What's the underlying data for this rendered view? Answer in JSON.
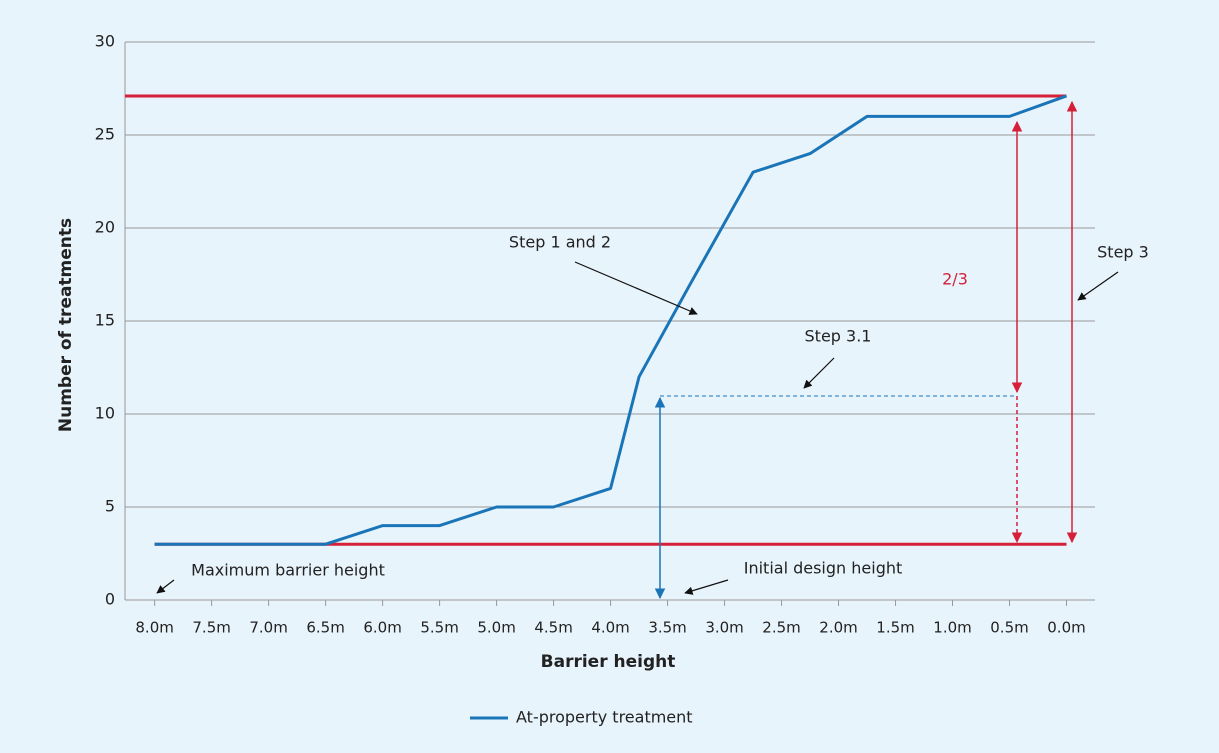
{
  "chart_data": {
    "type": "line",
    "xlabel": "Barrier height",
    "ylabel": "Number of treatments",
    "x": [
      8.0,
      6.5,
      6.0,
      5.5,
      5.0,
      4.5,
      4.0,
      3.75,
      3.3,
      2.75,
      2.25,
      1.75,
      0.5,
      0.0
    ],
    "series": [
      {
        "name": "At-property treatment",
        "color": "#1a75b8",
        "values": [
          3,
          3,
          4,
          4,
          5,
          5,
          6,
          12,
          17,
          23,
          24,
          26,
          26,
          27.1
        ]
      }
    ],
    "xlim": [
      8.26,
      -0.25
    ],
    "xticks": [
      {
        "value": 8.0,
        "label": "8.0m"
      },
      {
        "value": 7.5,
        "label": "7.5m"
      },
      {
        "value": 7.0,
        "label": "7.0m"
      },
      {
        "value": 6.5,
        "label": "6.5m"
      },
      {
        "value": 6.0,
        "label": "6.0m"
      },
      {
        "value": 5.5,
        "label": "5.5m"
      },
      {
        "value": 5.0,
        "label": "5.0m"
      },
      {
        "value": 4.5,
        "label": "4.5m"
      },
      {
        "value": 4.0,
        "label": "4.0m"
      },
      {
        "value": 3.5,
        "label": "3.5m"
      },
      {
        "value": 3.0,
        "label": "3.0m"
      },
      {
        "value": 2.5,
        "label": "2.5m"
      },
      {
        "value": 2.0,
        "label": "2.0m"
      },
      {
        "value": 1.5,
        "label": "1.5m"
      },
      {
        "value": 1.0,
        "label": "1.0m"
      },
      {
        "value": 0.5,
        "label": "0.5m"
      },
      {
        "value": 0.0,
        "label": "0.0m"
      }
    ],
    "ylim": [
      0,
      30
    ],
    "yticks": [
      0,
      5,
      10,
      15,
      20,
      25,
      30
    ],
    "grid": true,
    "reference_lines": [
      {
        "value": 27.1,
        "color": "#d6203a"
      },
      {
        "value": 3,
        "color": "#d6203a"
      }
    ],
    "annotations": [
      "Step 1 and 2",
      "2/3",
      "Step 3",
      "Step 3.1",
      "Maximum barrier height",
      "Initial design height"
    ],
    "legend": "bottom"
  }
}
